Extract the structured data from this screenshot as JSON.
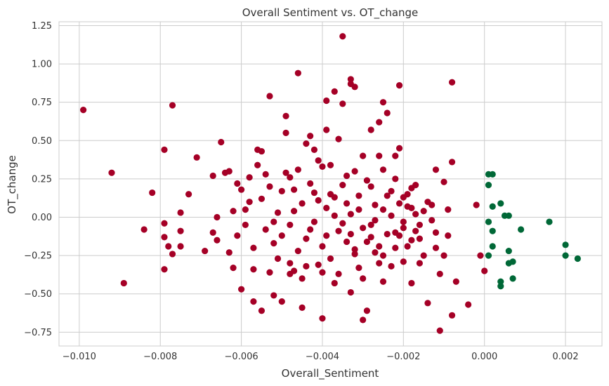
{
  "chart_data": {
    "type": "scatter",
    "title": "Overall Sentiment vs. OT_change",
    "xlabel": "Overall_Sentiment",
    "ylabel": "OT_change",
    "xlim": [
      -0.0105,
      0.0029
    ],
    "ylim": [
      -0.84,
      1.275
    ],
    "xticks": [
      -0.01,
      -0.008,
      -0.006,
      -0.004,
      -0.002,
      0.0,
      0.002
    ],
    "xtick_labels": [
      "−0.010",
      "−0.008",
      "−0.006",
      "−0.004",
      "−0.002",
      "0.000",
      "0.002"
    ],
    "yticks": [
      -0.75,
      -0.5,
      -0.25,
      0.0,
      0.25,
      0.5,
      0.75,
      1.0,
      1.25
    ],
    "ytick_labels": [
      "−0.75",
      "−0.50",
      "−0.25",
      "0.00",
      "0.25",
      "0.50",
      "0.75",
      "1.00",
      "1.25"
    ],
    "grid": true,
    "colors": {
      "negative": "#a50026",
      "positive": "#006837",
      "grid": "#cccccc",
      "frame": "#cccccc"
    },
    "series": [
      {
        "color_key": "negative",
        "points": [
          [
            -0.0099,
            0.7
          ],
          [
            -0.0092,
            0.29
          ],
          [
            -0.0089,
            -0.43
          ],
          [
            -0.0084,
            -0.08
          ],
          [
            -0.0082,
            0.16
          ],
          [
            -0.0079,
            0.44
          ],
          [
            -0.0079,
            -0.04
          ],
          [
            -0.0079,
            -0.13
          ],
          [
            -0.0078,
            -0.19
          ],
          [
            -0.0079,
            -0.34
          ],
          [
            -0.0077,
            0.73
          ],
          [
            -0.0077,
            -0.24
          ],
          [
            -0.0075,
            0.03
          ],
          [
            -0.0075,
            -0.09
          ],
          [
            -0.0075,
            -0.19
          ],
          [
            -0.0073,
            0.15
          ],
          [
            -0.0071,
            0.39
          ],
          [
            -0.0069,
            -0.22
          ],
          [
            -0.0067,
            -0.1
          ],
          [
            -0.0067,
            0.27
          ],
          [
            -0.0066,
            0.0
          ],
          [
            -0.0066,
            -0.15
          ],
          [
            -0.0065,
            0.49
          ],
          [
            -0.0064,
            0.29
          ],
          [
            -0.0063,
            0.3
          ],
          [
            -0.0063,
            -0.23
          ],
          [
            -0.0062,
            -0.33
          ],
          [
            -0.0061,
            0.22
          ],
          [
            -0.006,
            -0.47
          ],
          [
            -0.0059,
            0.05
          ],
          [
            -0.0058,
            0.26
          ],
          [
            -0.0057,
            -0.34
          ],
          [
            -0.0057,
            -0.55
          ],
          [
            -0.0056,
            0.44
          ],
          [
            -0.0055,
            0.43
          ],
          [
            -0.0055,
            -0.61
          ],
          [
            -0.0053,
            0.79
          ],
          [
            -0.0053,
            -0.36
          ],
          [
            -0.0052,
            -0.51
          ],
          [
            -0.0051,
            -0.27
          ],
          [
            -0.005,
            -0.55
          ],
          [
            -0.0049,
            0.66
          ],
          [
            -0.0049,
            0.55
          ],
          [
            -0.0048,
            -0.3
          ],
          [
            -0.0048,
            0.26
          ],
          [
            -0.0047,
            -0.35
          ],
          [
            -0.0046,
            0.94
          ],
          [
            -0.0045,
            -0.4
          ],
          [
            -0.0045,
            -0.59
          ],
          [
            -0.0044,
            0.48
          ],
          [
            -0.0043,
            0.53
          ],
          [
            -0.0042,
            0.44
          ],
          [
            -0.0041,
            -0.31
          ],
          [
            -0.0041,
            0.37
          ],
          [
            -0.004,
            -0.66
          ],
          [
            -0.004,
            0.33
          ],
          [
            -0.0039,
            0.76
          ],
          [
            -0.0039,
            0.57
          ],
          [
            -0.0038,
            0.15
          ],
          [
            -0.0037,
            0.82
          ],
          [
            -0.0037,
            -0.43
          ],
          [
            -0.0036,
            0.51
          ],
          [
            -0.0035,
            1.18
          ],
          [
            -0.0035,
            0.74
          ],
          [
            -0.0034,
            0.27
          ],
          [
            -0.0033,
            0.9
          ],
          [
            -0.0033,
            0.87
          ],
          [
            -0.0033,
            -0.49
          ],
          [
            -0.0032,
            0.85
          ],
          [
            -0.0032,
            -0.24
          ],
          [
            -0.0031,
            -0.33
          ],
          [
            -0.003,
            -0.67
          ],
          [
            -0.003,
            0.4
          ],
          [
            -0.0029,
            -0.61
          ],
          [
            -0.0028,
            0.57
          ],
          [
            -0.0028,
            -0.05
          ],
          [
            -0.0027,
            -0.23
          ],
          [
            -0.0026,
            0.62
          ],
          [
            -0.0026,
            0.4
          ],
          [
            -0.0025,
            0.75
          ],
          [
            -0.0025,
            -0.42
          ],
          [
            -0.0025,
            0.31
          ],
          [
            -0.0024,
            0.68
          ],
          [
            -0.0023,
            -0.32
          ],
          [
            -0.0022,
            0.4
          ],
          [
            -0.0022,
            -0.1
          ],
          [
            -0.0021,
            0.86
          ],
          [
            -0.0021,
            0.45
          ],
          [
            -0.002,
            0.13
          ],
          [
            -0.002,
            -0.03
          ],
          [
            -0.0019,
            -0.19
          ],
          [
            -0.0018,
            0.06
          ],
          [
            -0.0018,
            -0.43
          ],
          [
            -0.0017,
            0.21
          ],
          [
            -0.0016,
            -0.14
          ],
          [
            -0.0015,
            -0.25
          ],
          [
            -0.0014,
            -0.56
          ],
          [
            -0.0013,
            0.08
          ],
          [
            -0.0012,
            0.31
          ],
          [
            -0.0012,
            -0.1
          ],
          [
            -0.0011,
            -0.74
          ],
          [
            -0.0011,
            -0.37
          ],
          [
            -0.001,
            0.23
          ],
          [
            -0.001,
            -0.25
          ],
          [
            -0.0009,
            -0.12
          ],
          [
            -0.0009,
            0.05
          ],
          [
            -0.0008,
            0.88
          ],
          [
            -0.0008,
            0.36
          ],
          [
            -0.0008,
            -0.64
          ],
          [
            -0.0007,
            -0.42
          ],
          [
            -0.0004,
            -0.57
          ],
          [
            -0.0002,
            0.08
          ],
          [
            -0.0001,
            -0.25
          ],
          [
            0.0,
            -0.35
          ],
          [
            -0.0055,
            0.12
          ],
          [
            -0.0054,
            -0.08
          ],
          [
            -0.0053,
            0.2
          ],
          [
            -0.0052,
            -0.17
          ],
          [
            -0.0051,
            0.03
          ],
          [
            -0.005,
            -0.12
          ],
          [
            -0.0049,
            0.29
          ],
          [
            -0.0048,
            -0.05
          ],
          [
            -0.0047,
            0.18
          ],
          [
            -0.0046,
            -0.22
          ],
          [
            -0.0045,
            0.09
          ],
          [
            -0.0044,
            -0.14
          ],
          [
            -0.0043,
            0.22
          ],
          [
            -0.0042,
            -0.03
          ],
          [
            -0.0041,
            0.11
          ],
          [
            -0.004,
            -0.19
          ],
          [
            -0.0039,
            0.06
          ],
          [
            -0.0038,
            -0.27
          ],
          [
            -0.0037,
            0.13
          ],
          [
            -0.0036,
            -0.09
          ],
          [
            -0.0035,
            0.21
          ],
          [
            -0.0034,
            -0.16
          ],
          [
            -0.0033,
            0.02
          ],
          [
            -0.0032,
            -0.21
          ],
          [
            -0.0031,
            0.14
          ],
          [
            -0.003,
            -0.07
          ],
          [
            -0.0029,
            0.24
          ],
          [
            -0.0028,
            -0.13
          ],
          [
            -0.0027,
            0.08
          ],
          [
            -0.0026,
            -0.19
          ],
          [
            -0.0025,
            0.05
          ],
          [
            -0.0024,
            -0.11
          ],
          [
            -0.0023,
            0.17
          ],
          [
            -0.0022,
            -0.2
          ],
          [
            -0.0021,
            0.09
          ],
          [
            -0.002,
            -0.07
          ],
          [
            -0.0019,
            0.15
          ],
          [
            -0.0018,
            -0.15
          ],
          [
            -0.0017,
            0.02
          ],
          [
            -0.0016,
            -0.05
          ],
          [
            -0.0058,
            0.1
          ],
          [
            -0.0057,
            -0.2
          ],
          [
            -0.0056,
            0.34
          ],
          [
            -0.0054,
            0.28
          ],
          [
            -0.0052,
            -0.03
          ],
          [
            -0.005,
            0.17
          ],
          [
            -0.0048,
            -0.37
          ],
          [
            -0.0046,
            0.31
          ],
          [
            -0.0044,
            -0.32
          ],
          [
            -0.0042,
            0.16
          ],
          [
            -0.004,
            -0.36
          ],
          [
            -0.0038,
            0.34
          ],
          [
            -0.0036,
            -0.37
          ],
          [
            -0.0034,
            0.09
          ],
          [
            -0.0032,
            0.3
          ],
          [
            -0.003,
            -0.4
          ],
          [
            -0.0028,
            0.2
          ],
          [
            -0.0026,
            -0.3
          ],
          [
            -0.0024,
            0.14
          ],
          [
            -0.0022,
            0.25
          ],
          [
            -0.002,
            -0.29
          ],
          [
            -0.0018,
            0.19
          ],
          [
            -0.0016,
            -0.3
          ],
          [
            -0.0014,
            0.1
          ],
          [
            -0.0012,
            -0.2
          ],
          [
            -0.0062,
            0.04
          ],
          [
            -0.0061,
            -0.12
          ],
          [
            -0.006,
            0.18
          ],
          [
            -0.0059,
            -0.05
          ],
          [
            -0.0047,
            0.04
          ],
          [
            -0.0043,
            -0.08
          ],
          [
            -0.0039,
            -0.12
          ],
          [
            -0.0037,
            0.01
          ],
          [
            -0.0035,
            -0.04
          ],
          [
            -0.0033,
            -0.11
          ],
          [
            -0.0031,
            0.05
          ],
          [
            -0.0029,
            -0.16
          ],
          [
            -0.0027,
            -0.02
          ],
          [
            -0.0025,
            -0.25
          ],
          [
            -0.0023,
            0.01
          ],
          [
            -0.0021,
            -0.12
          ],
          [
            -0.0019,
            0.07
          ],
          [
            -0.0017,
            -0.09
          ],
          [
            -0.0015,
            0.04
          ],
          [
            -0.0013,
            -0.02
          ]
        ]
      },
      {
        "color_key": "positive",
        "points": [
          [
            0.0001,
            0.28
          ],
          [
            0.0002,
            0.28
          ],
          [
            0.0001,
            0.21
          ],
          [
            0.0002,
            0.07
          ],
          [
            0.0004,
            0.09
          ],
          [
            0.0005,
            0.01
          ],
          [
            0.0006,
            0.01
          ],
          [
            0.0001,
            -0.03
          ],
          [
            0.0002,
            -0.09
          ],
          [
            0.0002,
            -0.19
          ],
          [
            0.0001,
            -0.25
          ],
          [
            0.0004,
            -0.42
          ],
          [
            0.0004,
            -0.45
          ],
          [
            0.0006,
            -0.22
          ],
          [
            0.0006,
            -0.3
          ],
          [
            0.0007,
            -0.29
          ],
          [
            0.0007,
            -0.4
          ],
          [
            0.0009,
            -0.08
          ],
          [
            0.0016,
            -0.03
          ],
          [
            0.002,
            -0.18
          ],
          [
            0.002,
            -0.25
          ],
          [
            0.0023,
            -0.27
          ]
        ]
      }
    ]
  }
}
